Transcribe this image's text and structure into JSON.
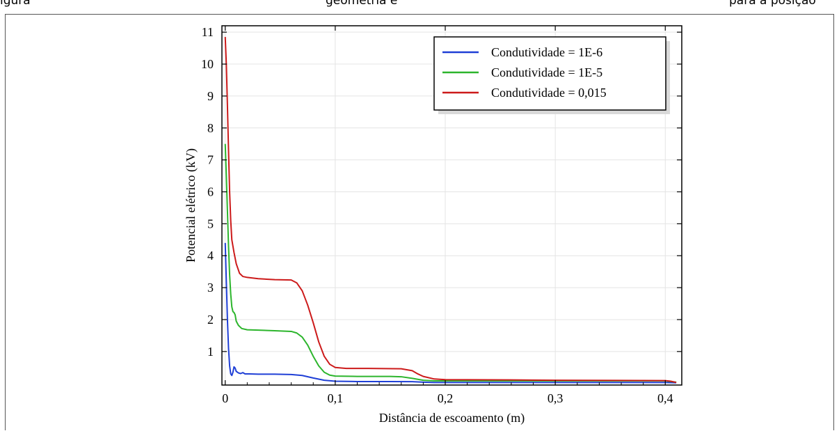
{
  "caption": {
    "left": "igura",
    "middle": "geometria e",
    "right": "para a posição"
  },
  "chart_data": {
    "type": "line",
    "title": "",
    "xlabel": "Distância de escoamento (m)",
    "ylabel": "Potencial elétrico (kV)",
    "xlim": [
      -0.003,
      0.415
    ],
    "ylim": [
      -0.05,
      11.2
    ],
    "x_ticks": [
      0,
      0.1,
      0.2,
      0.3,
      0.4
    ],
    "x_tick_labels": [
      "0",
      "0,1",
      "0,2",
      "0,3",
      "0,4"
    ],
    "y_ticks": [
      1,
      2,
      3,
      4,
      5,
      6,
      7,
      8,
      9,
      10,
      11
    ],
    "y_tick_labels": [
      "1",
      "2",
      "3",
      "4",
      "5",
      "6",
      "7",
      "8",
      "9",
      "10",
      "11"
    ],
    "grid": true,
    "legend_position": "top-right",
    "series": [
      {
        "name": "Condutividade = 1E-6",
        "color": "#1f3fd6",
        "points": [
          [
            0,
            4.4
          ],
          [
            0.001,
            3.2
          ],
          [
            0.002,
            2.0
          ],
          [
            0.003,
            1.1
          ],
          [
            0.004,
            0.55
          ],
          [
            0.005,
            0.3
          ],
          [
            0.006,
            0.25
          ],
          [
            0.007,
            0.35
          ],
          [
            0.008,
            0.52
          ],
          [
            0.009,
            0.48
          ],
          [
            0.01,
            0.38
          ],
          [
            0.012,
            0.33
          ],
          [
            0.014,
            0.31
          ],
          [
            0.016,
            0.34
          ],
          [
            0.018,
            0.3
          ],
          [
            0.022,
            0.3
          ],
          [
            0.03,
            0.29
          ],
          [
            0.045,
            0.29
          ],
          [
            0.06,
            0.28
          ],
          [
            0.07,
            0.25
          ],
          [
            0.08,
            0.17
          ],
          [
            0.09,
            0.1
          ],
          [
            0.1,
            0.07
          ],
          [
            0.12,
            0.06
          ],
          [
            0.15,
            0.06
          ],
          [
            0.17,
            0.055
          ],
          [
            0.18,
            0.04
          ],
          [
            0.19,
            0.03
          ],
          [
            0.2,
            0.03
          ],
          [
            0.3,
            0.03
          ],
          [
            0.4,
            0.03
          ],
          [
            0.41,
            0.02
          ]
        ]
      },
      {
        "name": "Condutividade = 1E-5",
        "color": "#2cb52c",
        "points": [
          [
            0,
            7.5
          ],
          [
            0.001,
            6.5
          ],
          [
            0.002,
            5.4
          ],
          [
            0.003,
            4.3
          ],
          [
            0.004,
            3.4
          ],
          [
            0.005,
            2.8
          ],
          [
            0.006,
            2.4
          ],
          [
            0.007,
            2.25
          ],
          [
            0.008,
            2.22
          ],
          [
            0.009,
            2.15
          ],
          [
            0.01,
            1.95
          ],
          [
            0.012,
            1.82
          ],
          [
            0.015,
            1.72
          ],
          [
            0.02,
            1.68
          ],
          [
            0.03,
            1.67
          ],
          [
            0.045,
            1.65
          ],
          [
            0.06,
            1.63
          ],
          [
            0.065,
            1.58
          ],
          [
            0.07,
            1.45
          ],
          [
            0.075,
            1.2
          ],
          [
            0.08,
            0.85
          ],
          [
            0.085,
            0.55
          ],
          [
            0.09,
            0.35
          ],
          [
            0.095,
            0.26
          ],
          [
            0.1,
            0.23
          ],
          [
            0.12,
            0.22
          ],
          [
            0.15,
            0.22
          ],
          [
            0.16,
            0.21
          ],
          [
            0.17,
            0.16
          ],
          [
            0.18,
            0.1
          ],
          [
            0.19,
            0.08
          ],
          [
            0.2,
            0.08
          ],
          [
            0.3,
            0.08
          ],
          [
            0.4,
            0.08
          ],
          [
            0.41,
            0.04
          ]
        ]
      },
      {
        "name": "Condutividade = 0,015",
        "color": "#cc1a1a",
        "points": [
          [
            0,
            10.85
          ],
          [
            0.001,
            10.0
          ],
          [
            0.002,
            8.7
          ],
          [
            0.003,
            7.3
          ],
          [
            0.004,
            6.0
          ],
          [
            0.005,
            5.1
          ],
          [
            0.006,
            4.5
          ],
          [
            0.008,
            4.1
          ],
          [
            0.01,
            3.75
          ],
          [
            0.013,
            3.45
          ],
          [
            0.016,
            3.35
          ],
          [
            0.02,
            3.32
          ],
          [
            0.03,
            3.28
          ],
          [
            0.045,
            3.25
          ],
          [
            0.06,
            3.24
          ],
          [
            0.065,
            3.15
          ],
          [
            0.07,
            2.9
          ],
          [
            0.075,
            2.45
          ],
          [
            0.08,
            1.9
          ],
          [
            0.085,
            1.3
          ],
          [
            0.09,
            0.85
          ],
          [
            0.095,
            0.6
          ],
          [
            0.1,
            0.5
          ],
          [
            0.11,
            0.47
          ],
          [
            0.13,
            0.47
          ],
          [
            0.16,
            0.46
          ],
          [
            0.17,
            0.4
          ],
          [
            0.175,
            0.3
          ],
          [
            0.18,
            0.22
          ],
          [
            0.19,
            0.14
          ],
          [
            0.2,
            0.12
          ],
          [
            0.26,
            0.11
          ],
          [
            0.3,
            0.1
          ],
          [
            0.4,
            0.09
          ],
          [
            0.405,
            0.07
          ],
          [
            0.41,
            0.03
          ]
        ]
      }
    ]
  }
}
